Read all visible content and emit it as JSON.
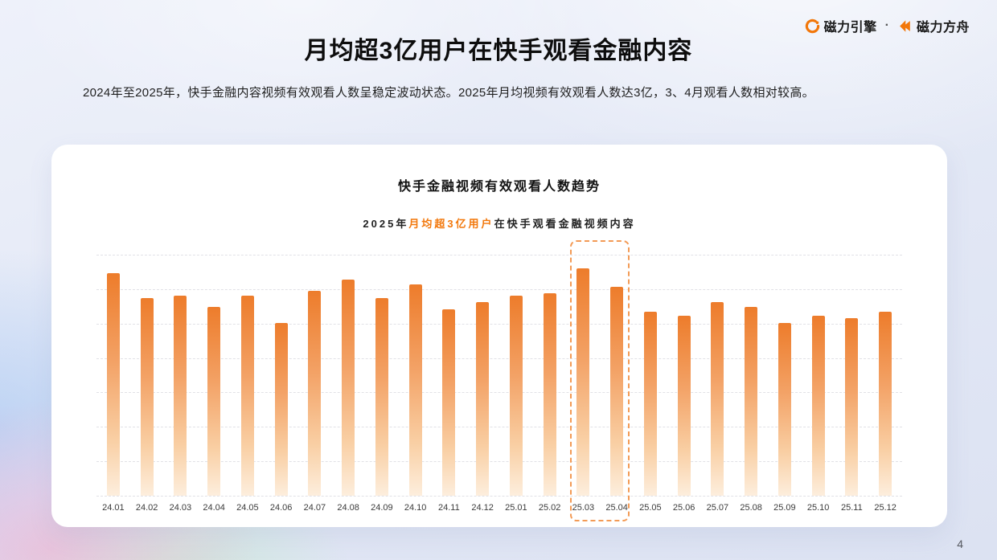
{
  "brand": {
    "logo1_text": "磁力引擎",
    "separator": "·",
    "logo2_text": "磁力方舟"
  },
  "header": {
    "title": "月均超3亿用户在快手观看金融内容",
    "subtitle": "2024年至2025年，快手金融内容视频有效观看人数呈稳定波动状态。2025年月均视频有效观看人数达3亿，3、4月观看人数相对较高。"
  },
  "chart_card": {
    "title": "快手金融视频有效观看人数趋势",
    "subtitle_prefix": "2025年",
    "subtitle_highlight": "月均超3亿用户",
    "subtitle_suffix": "在快手观看金融视频内容"
  },
  "colors": {
    "accent_orange": "#F2770A",
    "bar_gradient_top": "#ED7C2B",
    "bar_gradient_bottom": "#FDEEDD",
    "highlight_box_border": "#F39A55"
  },
  "chart_data": {
    "type": "bar",
    "title": "快手金融视频有效观看人数趋势",
    "subtitle": "2025年月均超3亿用户在快手观看金融视频内容",
    "categories": [
      "24.01",
      "24.02",
      "24.03",
      "24.04",
      "24.05",
      "24.06",
      "24.07",
      "24.08",
      "24.09",
      "24.10",
      "24.11",
      "24.12",
      "25.01",
      "25.02",
      "25.03",
      "25.04",
      "25.05",
      "25.06",
      "25.07",
      "25.08",
      "25.09",
      "25.10",
      "25.11",
      "25.12"
    ],
    "values": [
      98,
      87,
      88,
      83,
      88,
      76,
      90,
      95,
      87,
      93,
      82,
      85,
      88,
      89,
      100,
      92,
      81,
      79,
      85,
      83,
      76,
      79,
      78,
      81
    ],
    "value_note": "y轴未标注数值；柱高为相对值，25.03最高记为100，2025年月均约3亿",
    "ylim": [
      0,
      106
    ],
    "xlabel": "",
    "ylabel": "",
    "grid": "horizontal dashed",
    "legend": "none",
    "highlighted_categories": [
      "25.03",
      "25.04"
    ]
  },
  "page": {
    "page_number": "4"
  }
}
